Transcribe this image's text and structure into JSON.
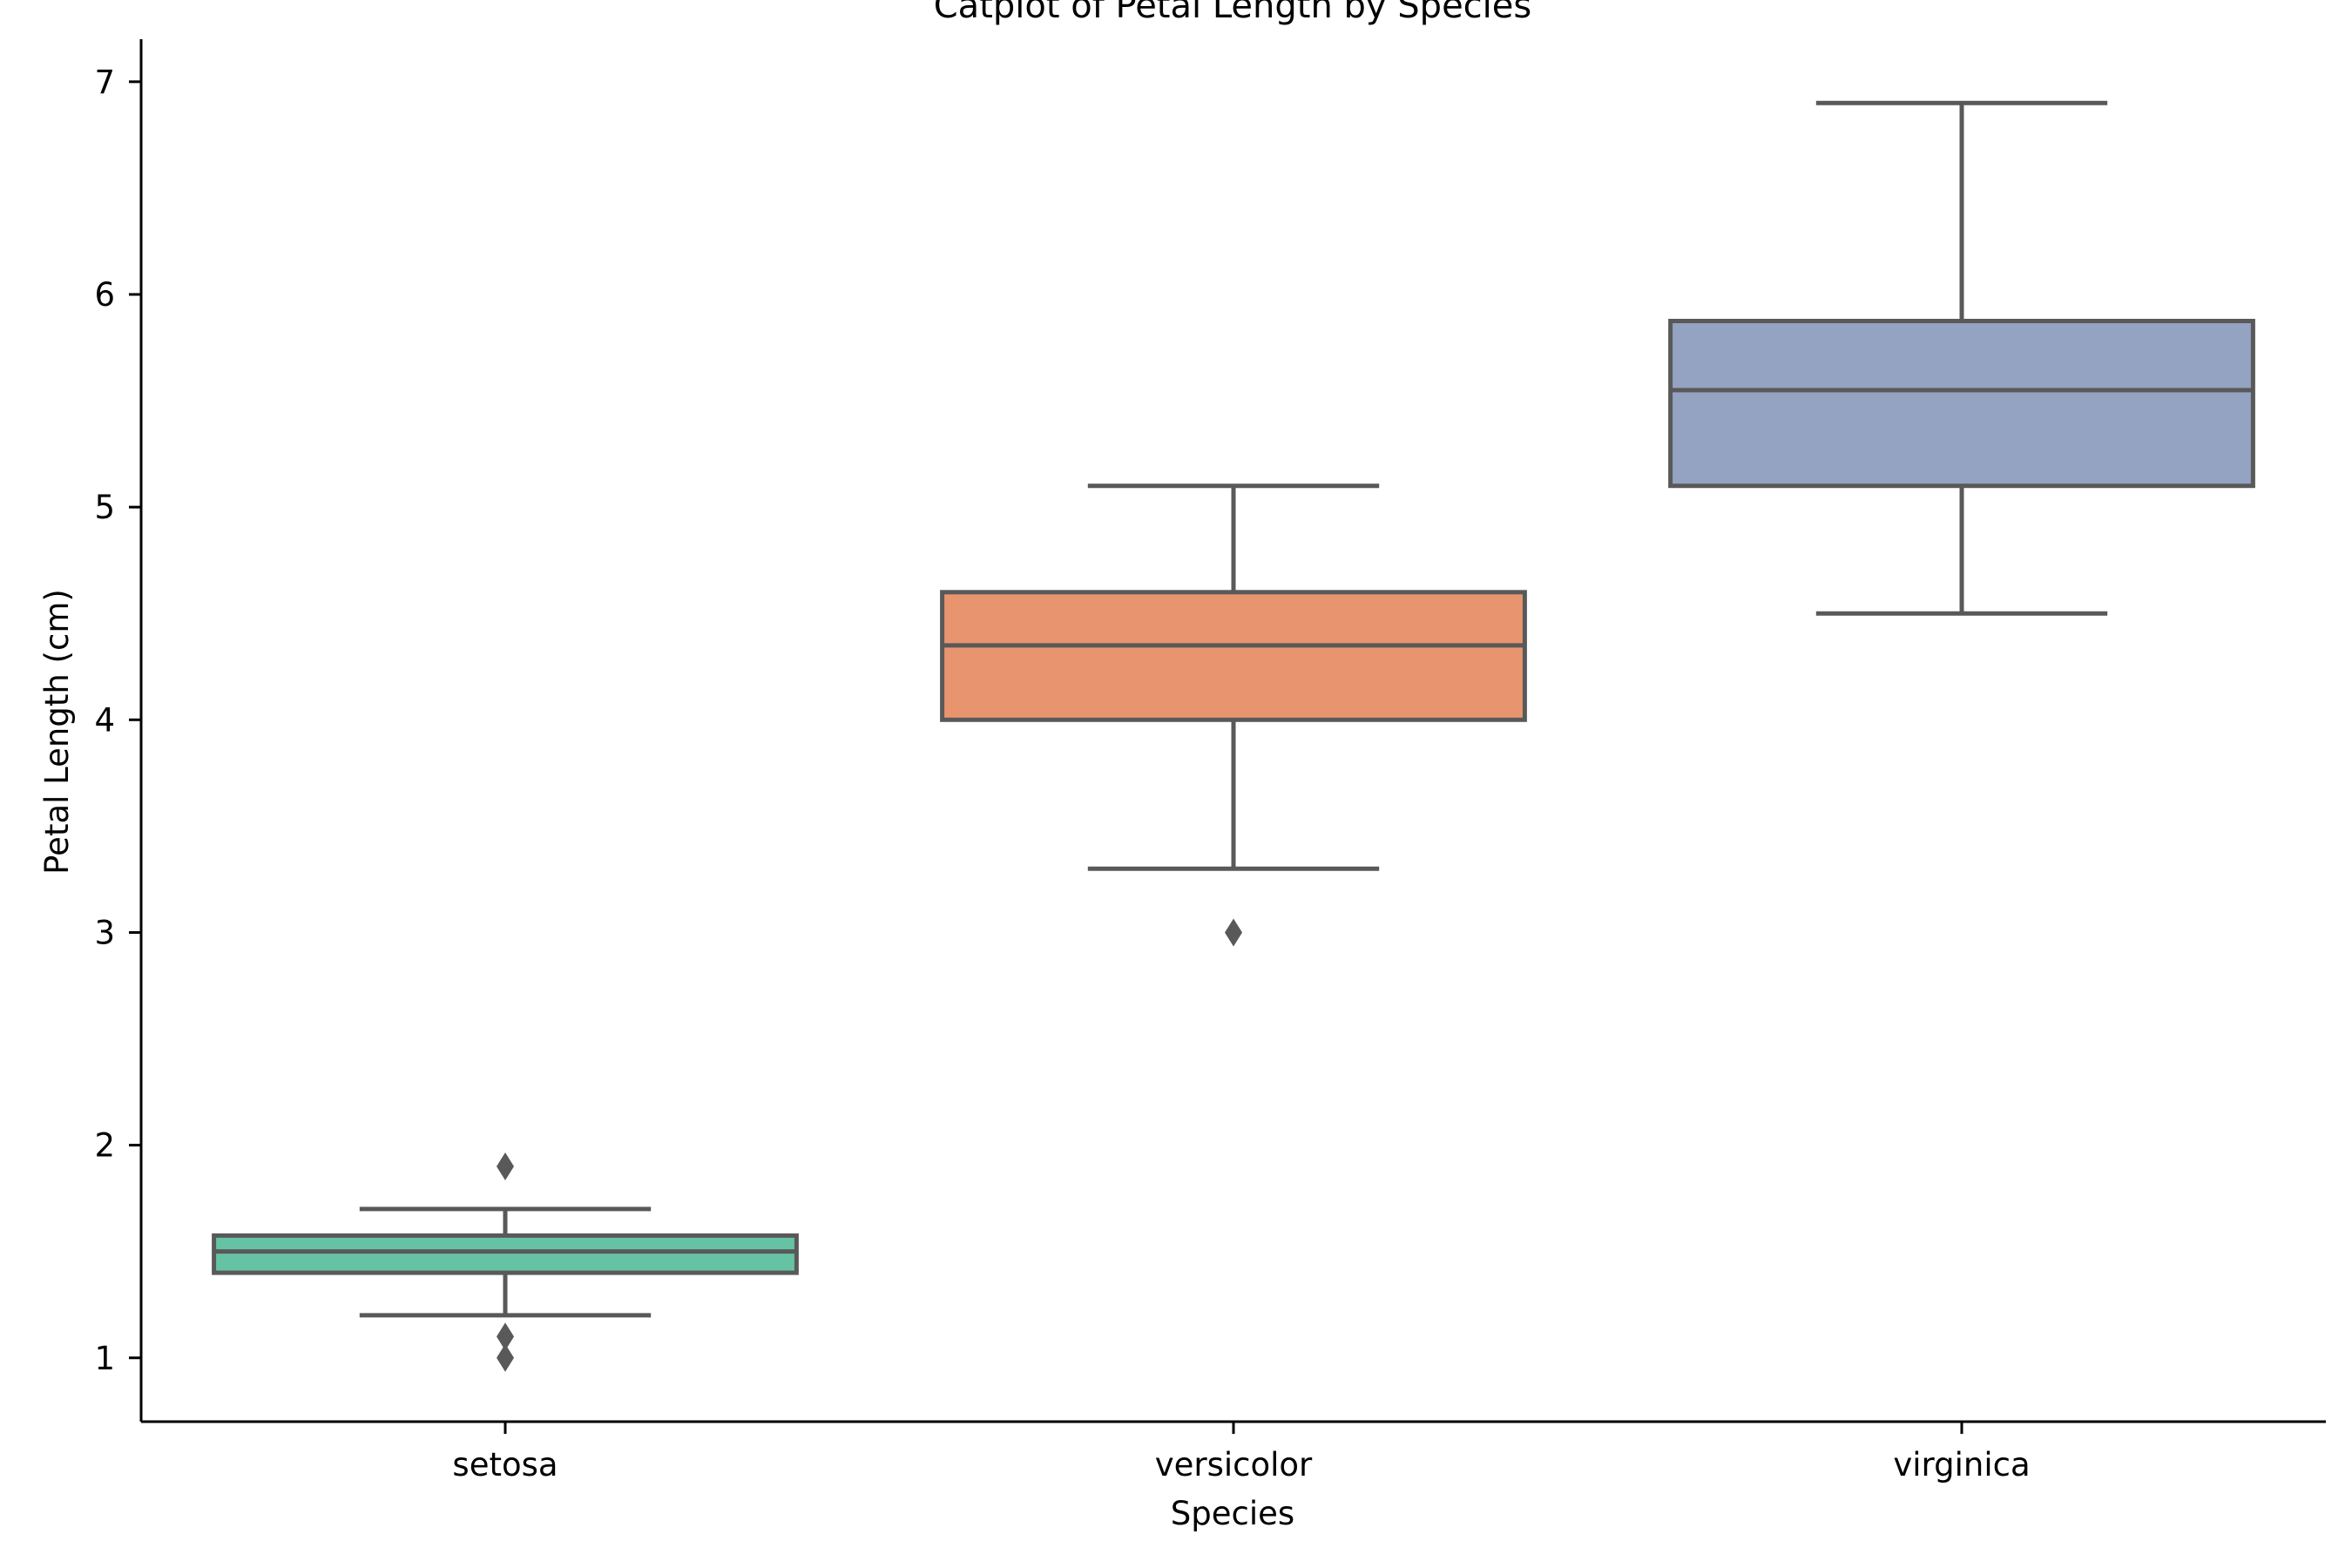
{
  "chart_data": {
    "type": "box",
    "title": "Catplot of Petal Length by Species",
    "xlabel": "Species",
    "ylabel": "Petal Length (cm)",
    "categories": [
      "setosa",
      "versicolor",
      "virginica"
    ],
    "y_ticks": [
      1,
      2,
      3,
      4,
      5,
      6,
      7
    ],
    "ylim": [
      0.7,
      7.2
    ],
    "grid": false,
    "line_color": "#595959",
    "series": [
      {
        "category": "setosa",
        "color": "#66c2a5",
        "whisker_low": 1.2,
        "q1": 1.4,
        "median": 1.5,
        "q3": 1.575,
        "whisker_high": 1.7,
        "outliers": [
          1.0,
          1.1,
          1.9
        ]
      },
      {
        "category": "versicolor",
        "color": "#e8956f",
        "whisker_low": 3.3,
        "q1": 4.0,
        "median": 4.35,
        "q3": 4.6,
        "whisker_high": 5.1,
        "outliers": [
          3.0
        ]
      },
      {
        "category": "virginica",
        "color": "#95a3c2",
        "whisker_low": 4.5,
        "q1": 5.1,
        "median": 5.55,
        "q3": 5.875,
        "whisker_high": 6.9,
        "outliers": []
      }
    ]
  }
}
